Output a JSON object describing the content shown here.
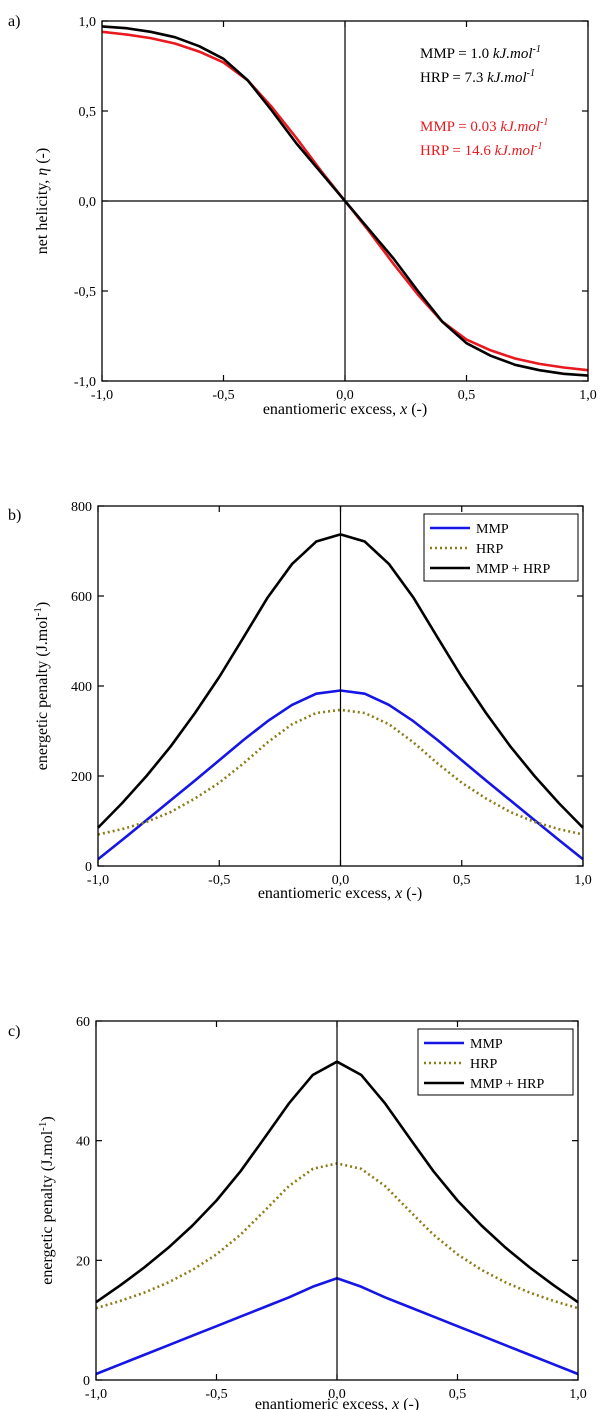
{
  "chart_data": [
    {
      "panel_label": "a)",
      "type": "line",
      "xlabel": "enantiomeric excess, x (-)",
      "xlabel_parts": [
        "enantiomeric excess, ",
        "x",
        " (-)"
      ],
      "ylabel": "net helicity, η (-)",
      "ylabel_parts": [
        "net helicity, ",
        "η",
        " (-)"
      ],
      "xlim": [
        -1.0,
        1.0
      ],
      "ylim": [
        -1.0,
        1.0
      ],
      "xticks": [
        -1.0,
        -0.5,
        0.0,
        0.5,
        1.0
      ],
      "xtick_labels": [
        "-1,0",
        "-0,5",
        "0,0",
        "0,5",
        "1,0"
      ],
      "yticks": [
        -1.0,
        -0.5,
        0.0,
        0.5,
        1.0
      ],
      "ytick_labels": [
        "-1,0",
        "-0,5",
        "0,0",
        "0,5",
        "1,0"
      ],
      "grid": false,
      "zero_lines": true,
      "annotations": [
        {
          "lines": [
            {
              "prefix": "MMP = 1.0 ",
              "unit": "kJ.mol",
              "sup": "-1"
            },
            {
              "prefix": "HRP = 7.3 ",
              "unit": "kJ.mol",
              "sup": "-1"
            }
          ],
          "color": "#000000"
        },
        {
          "lines": [
            {
              "prefix": "MMP = 0.03 ",
              "unit": "kJ.mol",
              "sup": "-1"
            },
            {
              "prefix": "HRP = 14.6 ",
              "unit": "kJ.mol",
              "sup": "-1"
            }
          ],
          "color": "#e8191f"
        }
      ],
      "series": [
        {
          "color": "#e8191f",
          "dash": "",
          "width": 2.6,
          "x": [
            -1.0,
            -0.9,
            -0.8,
            -0.7,
            -0.6,
            -0.5,
            -0.4,
            -0.3,
            -0.2,
            -0.1,
            0.0,
            0.1,
            0.2,
            0.3,
            0.4,
            0.5,
            0.6,
            0.7,
            0.8,
            0.9,
            1.0
          ],
          "y": [
            0.94,
            0.925,
            0.905,
            0.875,
            0.83,
            0.77,
            0.67,
            0.52,
            0.35,
            0.17,
            0.0,
            -0.17,
            -0.35,
            -0.52,
            -0.67,
            -0.77,
            -0.83,
            -0.875,
            -0.905,
            -0.925,
            -0.94
          ]
        },
        {
          "color": "#000000",
          "dash": "",
          "width": 2.6,
          "x": [
            -1.0,
            -0.9,
            -0.8,
            -0.7,
            -0.6,
            -0.5,
            -0.4,
            -0.3,
            -0.2,
            -0.1,
            0.0,
            0.1,
            0.2,
            0.3,
            0.4,
            0.5,
            0.6,
            0.7,
            0.8,
            0.9,
            1.0
          ],
          "y": [
            0.97,
            0.96,
            0.94,
            0.91,
            0.86,
            0.79,
            0.67,
            0.5,
            0.32,
            0.16,
            0.0,
            -0.16,
            -0.32,
            -0.5,
            -0.67,
            -0.79,
            -0.86,
            -0.91,
            -0.94,
            -0.96,
            -0.97
          ]
        }
      ]
    },
    {
      "panel_label": "b)",
      "type": "line",
      "xlabel": "enantiomeric excess, x (-)",
      "xlabel_parts": [
        "enantiomeric excess, ",
        "x",
        " (-)"
      ],
      "ylabel": "energetic penalty (J.mol-1)",
      "ylabel_parts": [
        "energetic penalty (J.mol",
        "-1",
        ")"
      ],
      "xlim": [
        -1.0,
        1.0
      ],
      "ylim": [
        0,
        800
      ],
      "xticks": [
        -1.0,
        -0.5,
        0.0,
        0.5,
        1.0
      ],
      "xtick_labels": [
        "-1,0",
        "-0,5",
        "0,0",
        "0,5",
        "1,0"
      ],
      "yticks": [
        0,
        200,
        400,
        600,
        800
      ],
      "ytick_labels": [
        "0",
        "200",
        "400",
        "600",
        "800"
      ],
      "grid": false,
      "legend": "top-right",
      "series": [
        {
          "name": "MMP",
          "color": "#1515e6",
          "dash": "",
          "width": 2.6,
          "x": [
            -1.0,
            -0.9,
            -0.8,
            -0.7,
            -0.6,
            -0.5,
            -0.4,
            -0.3,
            -0.2,
            -0.1,
            0.0,
            0.1,
            0.2,
            0.3,
            0.4,
            0.5,
            0.6,
            0.7,
            0.8,
            0.9,
            1.0
          ],
          "y": [
            15,
            58,
            102,
            146,
            190,
            235,
            280,
            322,
            358,
            383,
            390,
            383,
            358,
            322,
            280,
            235,
            190,
            146,
            102,
            58,
            15
          ]
        },
        {
          "name": "HRP",
          "color": "#8b7d16",
          "dash": "2,3",
          "width": 2.6,
          "x": [
            -1.0,
            -0.9,
            -0.8,
            -0.7,
            -0.6,
            -0.5,
            -0.4,
            -0.3,
            -0.2,
            -0.1,
            0.0,
            0.1,
            0.2,
            0.3,
            0.4,
            0.5,
            0.6,
            0.7,
            0.8,
            0.9,
            1.0
          ],
          "y": [
            70,
            82,
            98,
            120,
            150,
            185,
            228,
            275,
            315,
            340,
            347,
            340,
            315,
            275,
            228,
            185,
            150,
            120,
            98,
            82,
            70
          ]
        },
        {
          "name": "MMP + HRP",
          "color": "#000000",
          "dash": "",
          "width": 2.6,
          "x": [
            -1.0,
            -0.9,
            -0.8,
            -0.7,
            -0.6,
            -0.5,
            -0.4,
            -0.3,
            -0.2,
            -0.1,
            0.0,
            0.1,
            0.2,
            0.3,
            0.4,
            0.5,
            0.6,
            0.7,
            0.8,
            0.9,
            1.0
          ],
          "y": [
            85,
            140,
            200,
            266,
            340,
            420,
            508,
            597,
            671,
            721,
            737,
            721,
            671,
            597,
            508,
            420,
            340,
            266,
            200,
            140,
            85
          ]
        }
      ]
    },
    {
      "panel_label": "c)",
      "type": "line",
      "xlabel": "enantiomeric excess, x (-)",
      "xlabel_parts": [
        "enantiomeric excess, ",
        "x",
        " (-)"
      ],
      "ylabel": "energetic penalty (J.mol-1)",
      "ylabel_parts": [
        "energetic penalty (J.mol",
        "-1",
        ")"
      ],
      "xlim": [
        -1.0,
        1.0
      ],
      "ylim": [
        0,
        60
      ],
      "xticks": [
        -1.0,
        -0.5,
        0.0,
        0.5,
        1.0
      ],
      "xtick_labels": [
        "-1,0",
        "-0,5",
        "0,0",
        "0,5",
        "1,0"
      ],
      "yticks": [
        0,
        20,
        40,
        60
      ],
      "ytick_labels": [
        "0",
        "20",
        "40",
        "60"
      ],
      "grid": false,
      "legend": "top-right",
      "series": [
        {
          "name": "MMP",
          "color": "#1515e6",
          "dash": "",
          "width": 2.6,
          "x": [
            -1.0,
            -0.9,
            -0.8,
            -0.7,
            -0.6,
            -0.5,
            -0.4,
            -0.3,
            -0.2,
            -0.1,
            0.0,
            0.1,
            0.2,
            0.3,
            0.4,
            0.5,
            0.6,
            0.7,
            0.8,
            0.9,
            1.0
          ],
          "y": [
            1.0,
            2.6,
            4.2,
            5.8,
            7.4,
            9.0,
            10.6,
            12.2,
            13.8,
            15.6,
            17.0,
            15.6,
            13.8,
            12.2,
            10.6,
            9.0,
            7.4,
            5.8,
            4.2,
            2.6,
            1.0
          ]
        },
        {
          "name": "HRP",
          "color": "#8b7d16",
          "dash": "2,3",
          "width": 2.6,
          "x": [
            -1.0,
            -0.9,
            -0.8,
            -0.7,
            -0.6,
            -0.5,
            -0.4,
            -0.3,
            -0.2,
            -0.1,
            0.0,
            0.1,
            0.2,
            0.3,
            0.4,
            0.5,
            0.6,
            0.7,
            0.8,
            0.9,
            1.0
          ],
          "y": [
            12.0,
            13.2,
            14.6,
            16.3,
            18.4,
            21.0,
            24.3,
            28.3,
            32.4,
            35.3,
            36.2,
            35.3,
            32.4,
            28.3,
            24.3,
            21.0,
            18.4,
            16.3,
            14.6,
            13.2,
            12.0
          ]
        },
        {
          "name": "MMP + HRP",
          "color": "#000000",
          "dash": "",
          "width": 2.6,
          "x": [
            -1.0,
            -0.9,
            -0.8,
            -0.7,
            -0.6,
            -0.5,
            -0.4,
            -0.3,
            -0.2,
            -0.1,
            0.0,
            0.1,
            0.2,
            0.3,
            0.4,
            0.5,
            0.6,
            0.7,
            0.8,
            0.9,
            1.0
          ],
          "y": [
            13.0,
            15.8,
            18.8,
            22.1,
            25.8,
            30.0,
            34.9,
            40.5,
            46.2,
            51.0,
            53.2,
            51.0,
            46.2,
            40.5,
            34.9,
            30.0,
            25.8,
            22.1,
            18.8,
            15.8,
            13.0
          ]
        }
      ]
    }
  ]
}
